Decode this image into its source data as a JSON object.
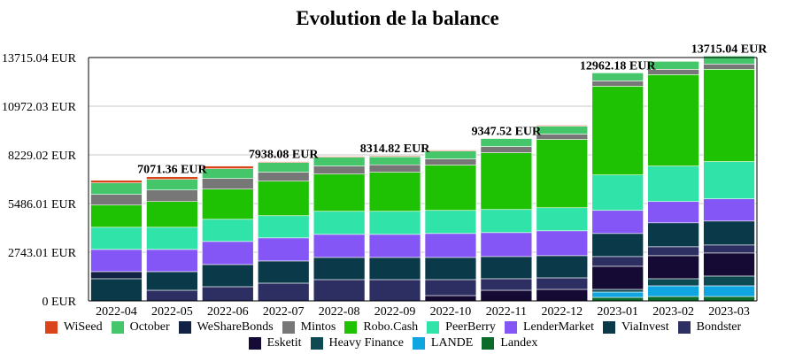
{
  "chart_data": {
    "type": "bar",
    "stacked": true,
    "title": "Evolution de la balance",
    "xlabel": "",
    "ylabel": "",
    "ylim": [
      0,
      13715.04
    ],
    "yticks": [
      "0 EUR",
      "2743.01 EUR",
      "5486.01 EUR",
      "8229.02 EUR",
      "10972.03 EUR",
      "13715.04 EUR"
    ],
    "grid": true,
    "legend_position": "bottom",
    "categories": [
      "2022-04",
      "2022-05",
      "2022-06",
      "2022-07",
      "2022-08",
      "2022-09",
      "2022-10",
      "2022-11",
      "2022-12",
      "2023-01",
      "2023-02",
      "2023-03"
    ],
    "series": [
      {
        "name": "Landex",
        "color": "#0b6b2a",
        "values": [
          0,
          0,
          0,
          0,
          0,
          0,
          0,
          0,
          0,
          200,
          250,
          250
        ]
      },
      {
        "name": "LANDE",
        "color": "#0ea5e0",
        "values": [
          0,
          0,
          0,
          0,
          0,
          0,
          0,
          0,
          0,
          300,
          600,
          600
        ]
      },
      {
        "name": "Heavy Finance",
        "color": "#0d4a52",
        "values": [
          0,
          0,
          0,
          0,
          0,
          0,
          0,
          0,
          0,
          150,
          400,
          550
        ]
      },
      {
        "name": "Esketit",
        "color": "#150a33",
        "values": [
          0,
          0,
          0,
          0,
          0,
          0,
          300,
          600,
          650,
          1300,
          1300,
          1300
        ]
      },
      {
        "name": "Bondster",
        "color": "#2d2f62",
        "values": [
          0,
          600,
          800,
          1000,
          1200,
          1200,
          900,
          650,
          650,
          550,
          500,
          450
        ]
      },
      {
        "name": "ViaInvest",
        "color": "#0a3a4a",
        "values": [
          1250,
          1050,
          1250,
          1250,
          1250,
          1250,
          1250,
          1250,
          1250,
          1300,
          1350,
          1350
        ]
      },
      {
        "name": "WeShareBonds",
        "color": "#112244",
        "values": [
          400,
          0,
          0,
          0,
          0,
          0,
          0,
          0,
          0,
          0,
          0,
          0
        ]
      },
      {
        "name": "LenderMarket",
        "color": "#8456f5",
        "values": [
          1250,
          1250,
          1300,
          1300,
          1300,
          1300,
          1350,
          1350,
          1400,
          1300,
          1200,
          1250
        ]
      },
      {
        "name": "PeerBerry",
        "color": "#2fe3a9",
        "values": [
          1250,
          1250,
          1250,
          1250,
          1300,
          1300,
          1300,
          1300,
          1300,
          2000,
          2000,
          2100
        ]
      },
      {
        "name": "Robo.Cash",
        "color": "#1ec202",
        "values": [
          1250,
          1450,
          1700,
          1950,
          2100,
          2200,
          2550,
          3200,
          3850,
          5000,
          5150,
          5200
        ]
      },
      {
        "name": "Mintos",
        "color": "#777777",
        "values": [
          600,
          650,
          600,
          500,
          450,
          420,
          350,
          350,
          300,
          300,
          300,
          300
        ]
      },
      {
        "name": "October",
        "color": "#45c66a",
        "values": [
          650,
          600,
          550,
          550,
          500,
          450,
          450,
          450,
          450,
          450,
          450,
          450
        ]
      },
      {
        "name": "WiSeed",
        "color": "#d9441a",
        "values": [
          150,
          150,
          150,
          50,
          50,
          50,
          50,
          0,
          50,
          0,
          0,
          0
        ]
      }
    ],
    "totals_labels": [
      {
        "category": "2022-05",
        "label": "7071.36 EUR"
      },
      {
        "category": "2022-07",
        "label": "7938.08 EUR"
      },
      {
        "category": "2022-09",
        "label": "8314.82 EUR"
      },
      {
        "category": "2022-11",
        "label": "9347.52 EUR"
      },
      {
        "category": "2023-01",
        "label": "12962.18 EUR"
      },
      {
        "category": "2023-03",
        "label": "13715.04 EUR"
      }
    ]
  },
  "legend": {
    "rows": [
      [
        {
          "label": "WiSeed",
          "color": "#d9441a"
        },
        {
          "label": "October",
          "color": "#45c66a"
        },
        {
          "label": "WeShareBonds",
          "color": "#112244"
        },
        {
          "label": "Mintos",
          "color": "#777777"
        },
        {
          "label": "Robo.Cash",
          "color": "#1ec202"
        },
        {
          "label": "PeerBerry",
          "color": "#2fe3a9"
        },
        {
          "label": "LenderMarket",
          "color": "#8456f5"
        },
        {
          "label": "ViaInvest",
          "color": "#0a3a4a"
        },
        {
          "label": "Bondster",
          "color": "#2d2f62"
        }
      ],
      [
        {
          "label": "Esketit",
          "color": "#150a33"
        },
        {
          "label": "Heavy Finance",
          "color": "#0d4a52"
        },
        {
          "label": "LANDE",
          "color": "#0ea5e0"
        },
        {
          "label": "Landex",
          "color": "#0b6b2a"
        }
      ]
    ]
  }
}
